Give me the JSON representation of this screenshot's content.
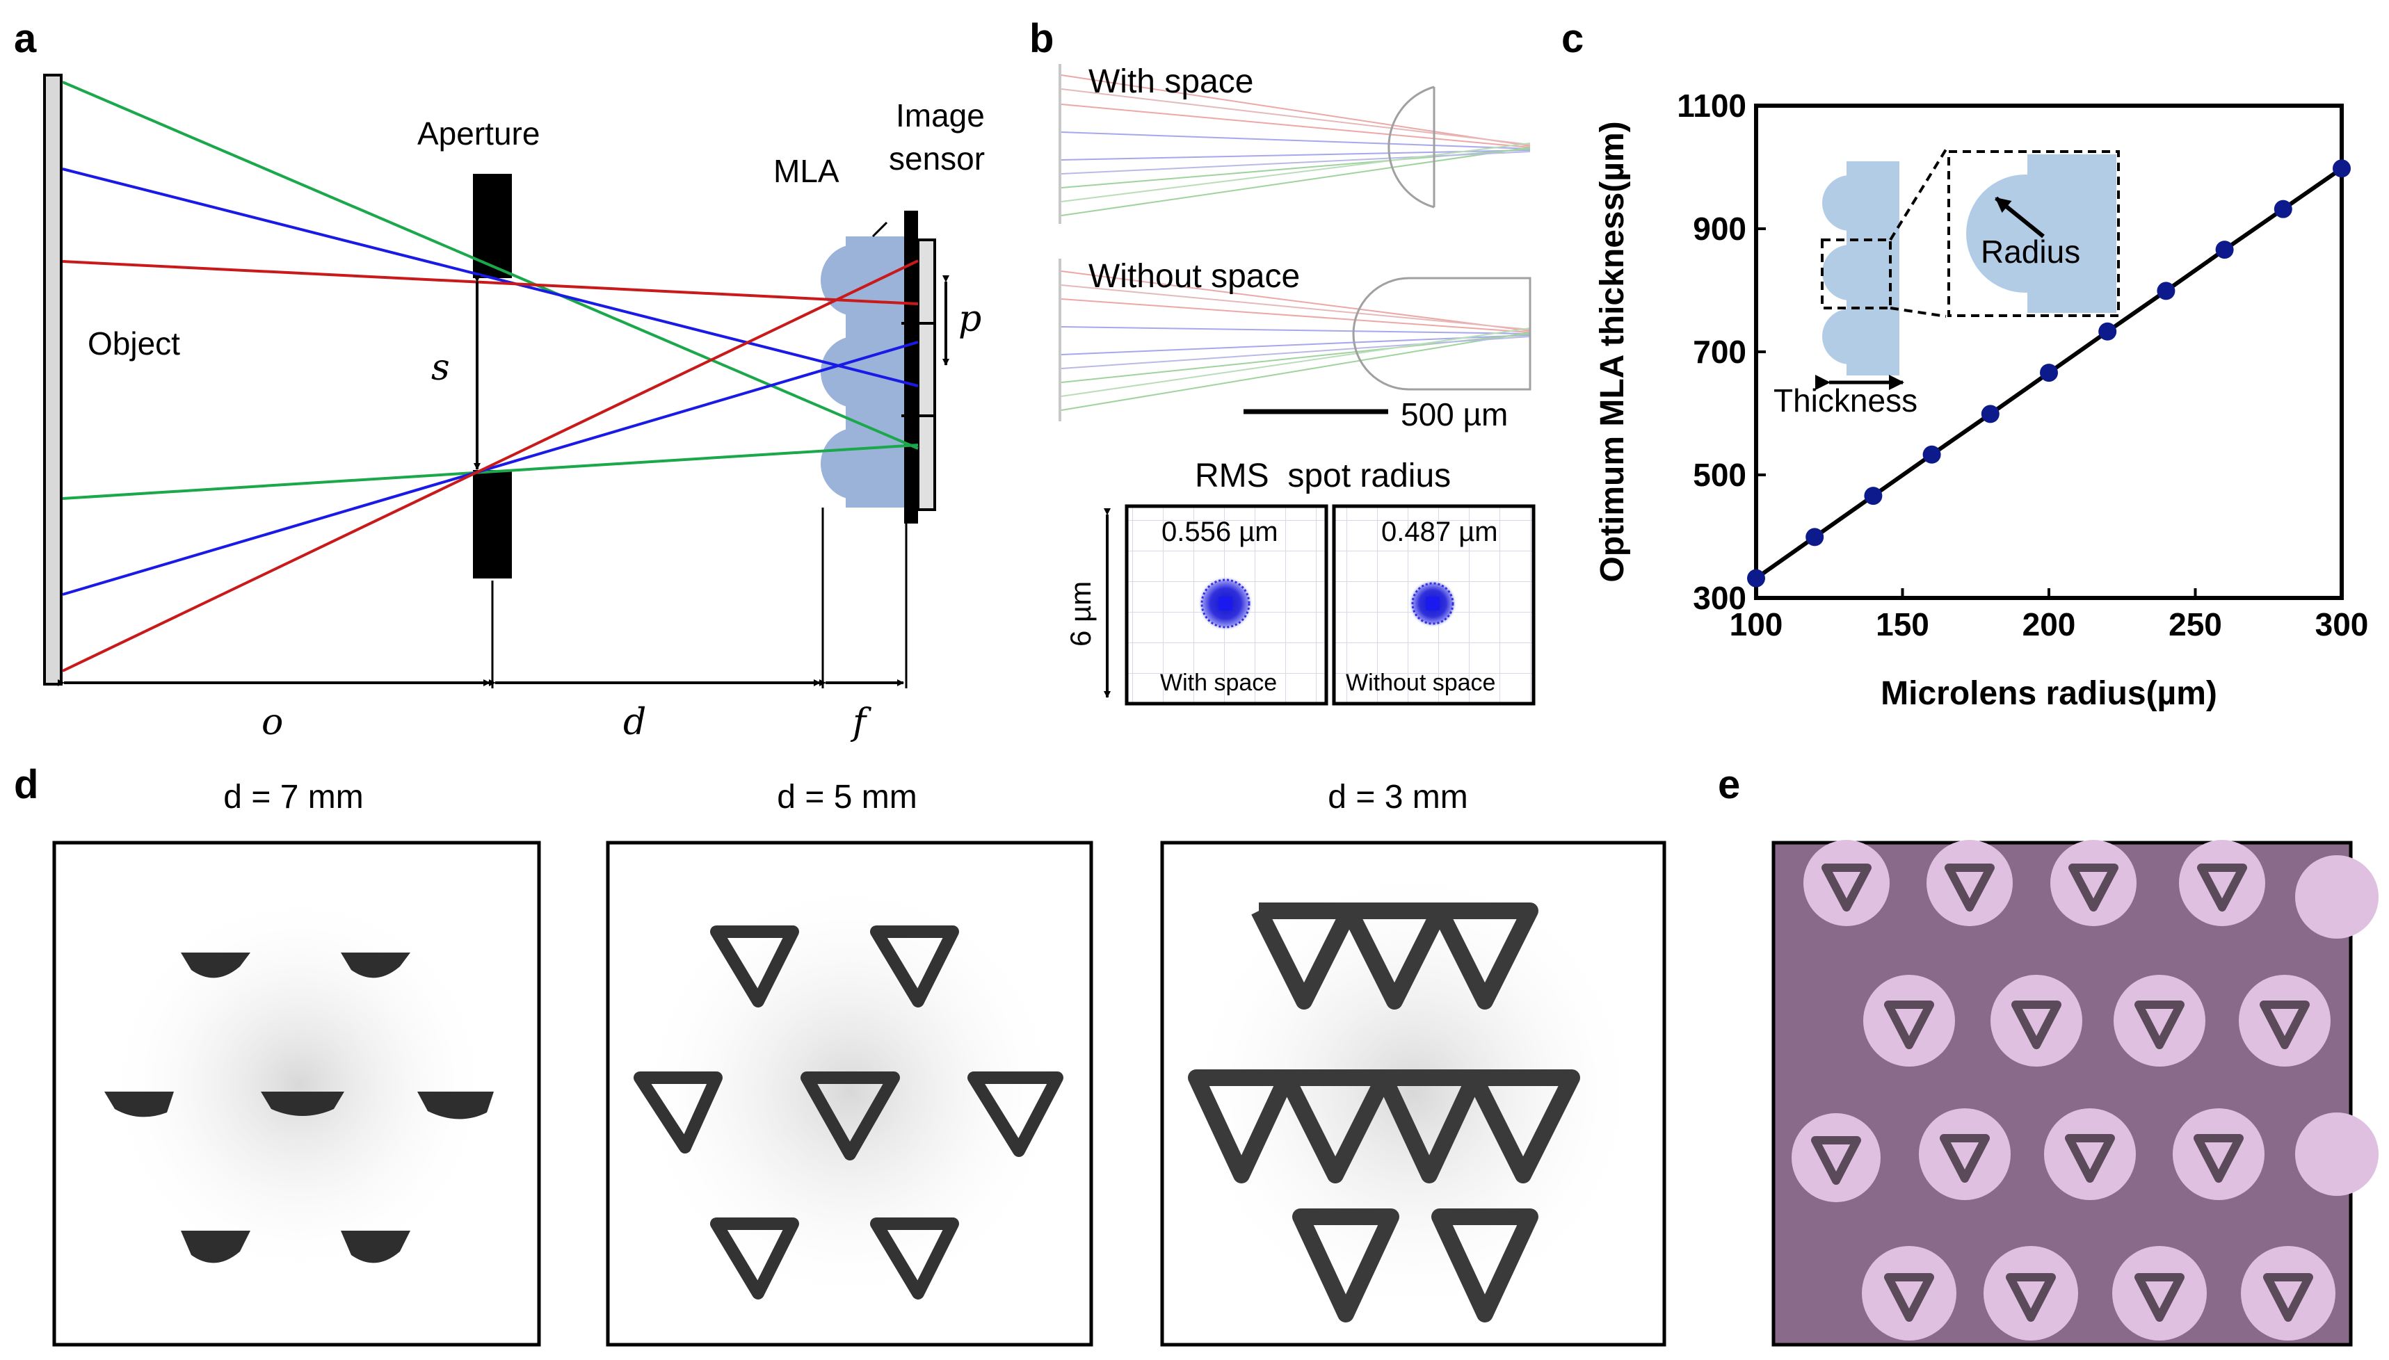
{
  "panel_labels": {
    "a": "a",
    "b": "b",
    "c": "c",
    "d": "d",
    "e": "e"
  },
  "panel_a": {
    "object_label": "Object",
    "aperture_label": "Aperture",
    "mla_label": "MLA",
    "image_sensor_label_line1": "Image",
    "image_sensor_label_line2": "sensor",
    "s_label": "s",
    "p_label": "p",
    "o_label": "o",
    "d_label": "d",
    "f_label": "f",
    "ray_colors": {
      "green": "#1aa84a",
      "blue": "#1a1ae6",
      "red": "#c81a1a"
    }
  },
  "panel_b": {
    "with_space_label": "With space",
    "without_space_label": "Without space",
    "scale_bar_label": "500 µm",
    "rms_title": "RMS  spot radius",
    "y_size_label": "6 µm",
    "spots": [
      {
        "value": "0.556 µm",
        "caption": "With space"
      },
      {
        "value": "0.487 µm",
        "caption": "Without space"
      }
    ],
    "spot_color": "#1a1acc"
  },
  "panel_c": {
    "inset_radius_label": "Radius",
    "inset_thickness_label": "Thickness",
    "inset_color": "#b3cce6",
    "chart_data": {
      "type": "line",
      "xlabel": "Microlens radius(µm)",
      "ylabel": "Optimum MLA thickness(µm)",
      "xlim": [
        100,
        300
      ],
      "ylim": [
        300,
        1100
      ],
      "xticks": [
        100,
        150,
        200,
        250,
        300
      ],
      "yticks": [
        300,
        500,
        700,
        900,
        1100
      ],
      "series": [
        {
          "x": [
            100,
            120,
            140,
            160,
            180,
            200,
            220,
            240,
            260,
            280,
            300
          ],
          "y": [
            332,
            399,
            466,
            533,
            599,
            666,
            733,
            799,
            866,
            932,
            998
          ],
          "color": "#0d1a8c"
        }
      ]
    }
  },
  "panel_d": {
    "labels": [
      "d = 7 mm",
      "d = 5 mm",
      "d = 3 mm"
    ]
  },
  "panel_e": {
    "background_color": "#8a6a8a",
    "disk_color": "#e0c0e0"
  }
}
